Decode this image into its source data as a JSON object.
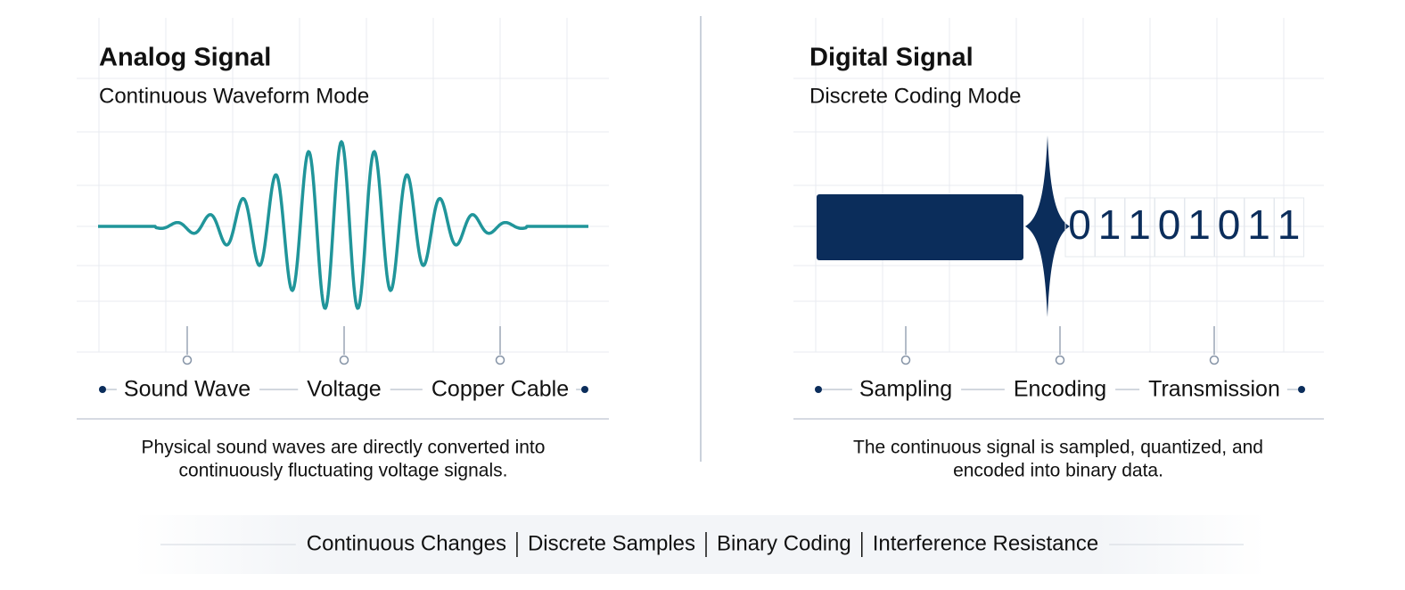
{
  "left": {
    "title": "Analog Signal",
    "subtitle": "Continuous Waveform Mode",
    "stages": [
      "Sound Wave",
      "Voltage",
      "Copper Cable"
    ],
    "caption": [
      "Physical sound waves are directly converted into",
      "continuously fluctuating voltage signals."
    ]
  },
  "right": {
    "title": "Digital Signal",
    "subtitle": "Discrete Coding Mode",
    "bits": [
      "0",
      "1",
      "1",
      "0",
      "1",
      "0",
      "1",
      "1"
    ],
    "stages": [
      "Sampling",
      "Encoding",
      "Transmission"
    ],
    "caption": [
      "The continuous signal is sampled, quantized, and",
      "encoded into binary data."
    ]
  },
  "footer": {
    "keywords": [
      "Continuous Changes",
      "Discrete Samples",
      "Binary Coding",
      "Interference Resistance"
    ]
  }
}
